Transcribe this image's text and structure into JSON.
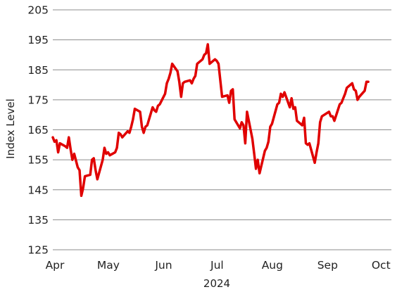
{
  "chart_data": {
    "type": "line",
    "title": "",
    "ylabel": "Index Level",
    "xlabel": "2024",
    "ylim": [
      125,
      205
    ],
    "y_ticks": [
      125,
      135,
      145,
      155,
      165,
      175,
      185,
      195,
      205
    ],
    "x_ticks": [
      {
        "label": "Apr",
        "date": "2024-04-01"
      },
      {
        "label": "May",
        "date": "2024-05-01"
      },
      {
        "label": "Jun",
        "date": "2024-06-01"
      },
      {
        "label": "Jul",
        "date": "2024-07-01"
      },
      {
        "label": "Aug",
        "date": "2024-08-01"
      },
      {
        "label": "Sep",
        "date": "2024-09-01"
      },
      {
        "label": "Oct",
        "date": "2024-10-01"
      }
    ],
    "x_range": [
      "2024-04-01",
      "2024-10-08"
    ],
    "grid": "horizontal",
    "legend": "none",
    "line_color": "#e00000",
    "series": [
      {
        "points": [
          [
            "2024-04-01",
            162.5
          ],
          [
            "2024-04-02",
            161.0
          ],
          [
            "2024-04-03",
            161.5
          ],
          [
            "2024-04-04",
            157.5
          ],
          [
            "2024-04-05",
            160.5
          ],
          [
            "2024-04-08",
            159.5
          ],
          [
            "2024-04-09",
            159.0
          ],
          [
            "2024-04-10",
            162.5
          ],
          [
            "2024-04-11",
            158.5
          ],
          [
            "2024-04-12",
            155.0
          ],
          [
            "2024-04-13",
            157.0
          ],
          [
            "2024-04-15",
            152.5
          ],
          [
            "2024-04-16",
            151.5
          ],
          [
            "2024-04-17",
            143.0
          ],
          [
            "2024-04-18",
            145.5
          ],
          [
            "2024-04-19",
            149.5
          ],
          [
            "2024-04-22",
            150.0
          ],
          [
            "2024-04-23",
            155.0
          ],
          [
            "2024-04-24",
            155.5
          ],
          [
            "2024-04-25",
            151.5
          ],
          [
            "2024-04-26",
            148.5
          ],
          [
            "2024-04-29",
            155.0
          ],
          [
            "2024-04-30",
            159.0
          ],
          [
            "2024-05-01",
            157.0
          ],
          [
            "2024-05-02",
            157.5
          ],
          [
            "2024-05-03",
            156.5
          ],
          [
            "2024-05-06",
            157.5
          ],
          [
            "2024-05-07",
            159.0
          ],
          [
            "2024-05-08",
            164.0
          ],
          [
            "2024-05-09",
            163.5
          ],
          [
            "2024-05-10",
            162.5
          ],
          [
            "2024-05-13",
            164.5
          ],
          [
            "2024-05-14",
            164.0
          ],
          [
            "2024-05-15",
            166.0
          ],
          [
            "2024-05-16",
            168.5
          ],
          [
            "2024-05-17",
            172.0
          ],
          [
            "2024-05-20",
            171.0
          ],
          [
            "2024-05-21",
            166.0
          ],
          [
            "2024-05-22",
            164.0
          ],
          [
            "2024-05-23",
            166.0
          ],
          [
            "2024-05-24",
            166.5
          ],
          [
            "2024-05-27",
            172.5
          ],
          [
            "2024-05-28",
            171.5
          ],
          [
            "2024-05-29",
            171.0
          ],
          [
            "2024-05-30",
            173.0
          ],
          [
            "2024-05-31",
            173.5
          ],
          [
            "2024-06-03",
            177.0
          ],
          [
            "2024-06-04",
            180.5
          ],
          [
            "2024-06-05",
            182.0
          ],
          [
            "2024-06-06",
            184.0
          ],
          [
            "2024-06-07",
            187.0
          ],
          [
            "2024-06-10",
            184.5
          ],
          [
            "2024-06-11",
            181.0
          ],
          [
            "2024-06-12",
            176.0
          ],
          [
            "2024-06-13",
            180.5
          ],
          [
            "2024-06-14",
            181.0
          ],
          [
            "2024-06-17",
            181.5
          ],
          [
            "2024-06-18",
            180.5
          ],
          [
            "2024-06-19",
            182.0
          ],
          [
            "2024-06-20",
            183.0
          ],
          [
            "2024-06-21",
            187.0
          ],
          [
            "2024-06-24",
            188.5
          ],
          [
            "2024-06-25",
            190.0
          ],
          [
            "2024-06-26",
            190.5
          ],
          [
            "2024-06-27",
            193.5
          ],
          [
            "2024-06-28",
            187.0
          ],
          [
            "2024-07-01",
            188.5
          ],
          [
            "2024-07-02",
            188.0
          ],
          [
            "2024-07-03",
            187.0
          ],
          [
            "2024-07-05",
            176.0
          ],
          [
            "2024-07-08",
            176.5
          ],
          [
            "2024-07-09",
            174.0
          ],
          [
            "2024-07-10",
            178.0
          ],
          [
            "2024-07-11",
            178.5
          ],
          [
            "2024-07-12",
            168.5
          ],
          [
            "2024-07-15",
            165.5
          ],
          [
            "2024-07-16",
            167.5
          ],
          [
            "2024-07-17",
            166.5
          ],
          [
            "2024-07-18",
            160.5
          ],
          [
            "2024-07-19",
            171.0
          ],
          [
            "2024-07-22",
            162.0
          ],
          [
            "2024-07-23",
            157.0
          ],
          [
            "2024-07-24",
            152.0
          ],
          [
            "2024-07-25",
            155.0
          ],
          [
            "2024-07-26",
            150.5
          ],
          [
            "2024-07-29",
            158.0
          ],
          [
            "2024-07-30",
            159.0
          ],
          [
            "2024-07-31",
            161.0
          ],
          [
            "2024-08-01",
            166.0
          ],
          [
            "2024-08-02",
            167.0
          ],
          [
            "2024-08-05",
            173.5
          ],
          [
            "2024-08-06",
            174.0
          ],
          [
            "2024-08-07",
            177.0
          ],
          [
            "2024-08-08",
            176.0
          ],
          [
            "2024-08-09",
            177.5
          ],
          [
            "2024-08-12",
            172.5
          ],
          [
            "2024-08-13",
            175.5
          ],
          [
            "2024-08-14",
            172.0
          ],
          [
            "2024-08-15",
            172.5
          ],
          [
            "2024-08-16",
            168.0
          ],
          [
            "2024-08-19",
            166.5
          ],
          [
            "2024-08-20",
            169.0
          ],
          [
            "2024-08-21",
            160.5
          ],
          [
            "2024-08-22",
            160.0
          ],
          [
            "2024-08-23",
            160.5
          ],
          [
            "2024-08-26",
            154.0
          ],
          [
            "2024-08-27",
            157.5
          ],
          [
            "2024-08-28",
            160.5
          ],
          [
            "2024-08-29",
            167.5
          ],
          [
            "2024-08-30",
            169.5
          ],
          [
            "2024-09-03",
            171.0
          ],
          [
            "2024-09-04",
            169.5
          ],
          [
            "2024-09-05",
            169.5
          ],
          [
            "2024-09-06",
            168.0
          ],
          [
            "2024-09-09",
            173.5
          ],
          [
            "2024-09-10",
            174.0
          ],
          [
            "2024-09-11",
            175.5
          ],
          [
            "2024-09-12",
            177.0
          ],
          [
            "2024-09-13",
            179.0
          ],
          [
            "2024-09-16",
            180.5
          ],
          [
            "2024-09-17",
            178.5
          ],
          [
            "2024-09-18",
            178.0
          ],
          [
            "2024-09-19",
            175.0
          ],
          [
            "2024-09-20",
            176.0
          ],
          [
            "2024-09-23",
            178.0
          ],
          [
            "2024-09-24",
            181.0
          ],
          [
            "2024-09-25",
            181.0
          ]
        ]
      }
    ]
  }
}
